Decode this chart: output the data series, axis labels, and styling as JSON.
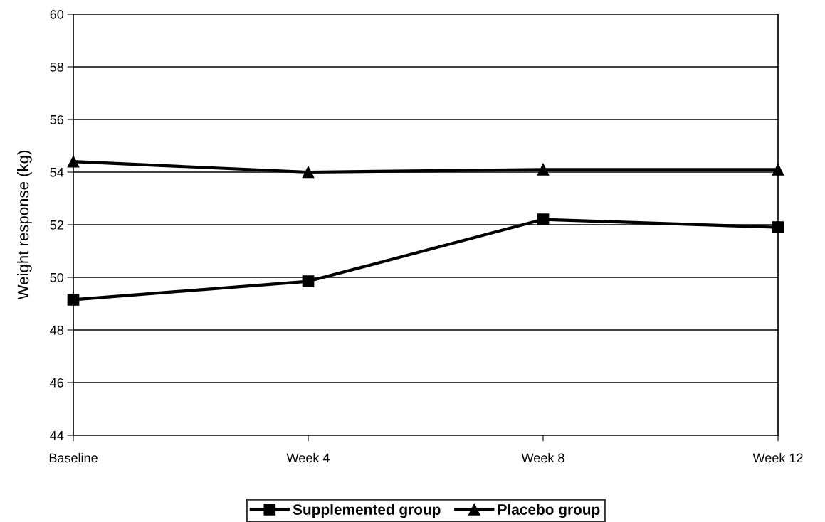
{
  "chart_data": {
    "type": "line",
    "ylabel": "Weight response (kg)",
    "categories": [
      "Baseline",
      "Week 4",
      "Week 8",
      "Week 12"
    ],
    "series": [
      {
        "name": "Supplemented group",
        "color": "#000000",
        "marker": "square",
        "values": [
          49.15,
          49.85,
          52.2,
          51.9
        ]
      },
      {
        "name": "Placebo group",
        "color": "#000000",
        "marker": "triangle",
        "values": [
          54.4,
          54.0,
          54.1,
          54.1
        ]
      }
    ],
    "ylim": [
      44,
      60
    ],
    "yticks": [
      44,
      46,
      48,
      50,
      52,
      54,
      56,
      58,
      60
    ],
    "grid": "y",
    "legend": "bottom",
    "line_style": "solid"
  }
}
